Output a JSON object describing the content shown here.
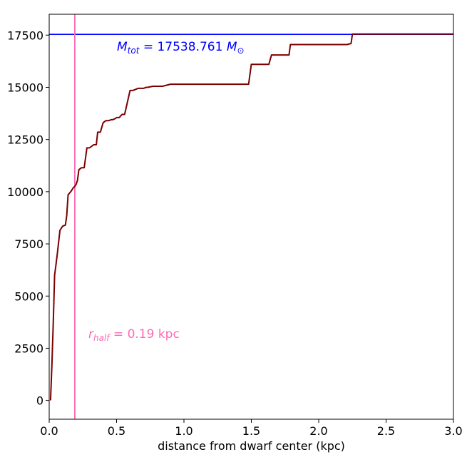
{
  "chart_data": {
    "type": "line",
    "title": "",
    "xlabel": "distance from dwarf center (kpc)",
    "ylabel": "",
    "xlim": [
      0.0,
      3.0
    ],
    "ylim": [
      -900,
      18500
    ],
    "x_ticks": [
      0.0,
      0.5,
      1.0,
      1.5,
      2.0,
      2.5,
      3.0
    ],
    "x_tick_labels": [
      "0.0",
      "0.5",
      "1.0",
      "1.5",
      "2.0",
      "2.5",
      "3.0"
    ],
    "y_ticks": [
      0,
      2500,
      5000,
      7500,
      10000,
      12500,
      15000,
      17500
    ],
    "y_tick_labels": [
      "0",
      "2500",
      "5000",
      "7500",
      "10000",
      "12500",
      "15000",
      "17500"
    ],
    "grid": false,
    "series": [
      {
        "color": "#7b0000",
        "x": [
          0.01,
          0.02,
          0.03,
          0.04,
          0.05,
          0.06,
          0.08,
          0.1,
          0.12,
          0.13,
          0.14,
          0.16,
          0.18,
          0.19,
          0.2,
          0.21,
          0.22,
          0.24,
          0.26,
          0.28,
          0.3,
          0.31,
          0.33,
          0.35,
          0.36,
          0.38,
          0.4,
          0.42,
          0.44,
          0.46,
          0.47,
          0.49,
          0.5,
          0.52,
          0.54,
          0.56,
          0.6,
          0.62,
          0.64,
          0.66,
          0.68,
          0.7,
          0.72,
          0.73,
          0.77,
          0.79,
          0.83,
          0.84,
          0.9,
          0.93,
          0.98,
          1.0,
          1.18,
          1.19,
          1.48,
          1.5,
          1.51,
          1.62,
          1.63,
          1.65,
          1.78,
          1.79,
          1.81,
          1.98,
          2.0,
          2.2,
          2.21,
          2.24,
          2.25,
          2.27,
          3.0
        ],
        "values": [
          0,
          1700,
          3700,
          6000,
          6500,
          7000,
          8150,
          8350,
          8400,
          8850,
          9850,
          10000,
          10200,
          10250,
          10350,
          10550,
          11050,
          11150,
          11150,
          12100,
          12100,
          12150,
          12250,
          12250,
          12850,
          12850,
          13300,
          13400,
          13400,
          13450,
          13450,
          13500,
          13550,
          13550,
          13700,
          13700,
          14850,
          14850,
          14900,
          14950,
          14950,
          14950,
          15000,
          15000,
          15050,
          15050,
          15050,
          15050,
          15150,
          15150,
          15150,
          15150,
          15150,
          15150,
          15150,
          16100,
          16100,
          16100,
          16100,
          16550,
          16550,
          17050,
          17050,
          17050,
          17050,
          17050,
          17050,
          17100,
          17550,
          17550,
          17550
        ]
      }
    ],
    "reference_lines": [
      {
        "orientation": "horizontal",
        "value": 17538.761,
        "color": "#0000ff"
      },
      {
        "orientation": "vertical",
        "value": 0.19,
        "color": "#ff69b4"
      }
    ],
    "annotations": [
      {
        "key": "mtot",
        "color": "#0000ff",
        "label_name": "M",
        "label_sub": "tot",
        "text": " = 17538.761 ",
        "unit_name": "M",
        "unit_sub": "⊙"
      },
      {
        "key": "rhalf",
        "color": "#ff69b4",
        "label_name": "r",
        "label_sub": "half",
        "text": " = 0.19 kpc"
      }
    ]
  }
}
